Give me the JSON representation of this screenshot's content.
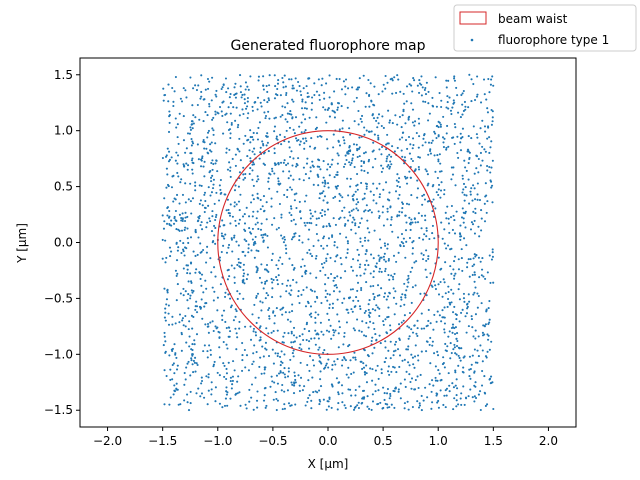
{
  "chart_data": {
    "type": "scatter",
    "title": "Generated fluorophore map",
    "xlabel": "X [μm]",
    "ylabel": "Y [μm]",
    "xlim": [
      -2.25,
      2.25
    ],
    "ylim": [
      -1.65,
      1.65
    ],
    "xticks": [
      "−2.0",
      "−1.5",
      "−1.0",
      "−0.5",
      "0.0",
      "0.5",
      "1.0",
      "1.5",
      "2.0"
    ],
    "yticks": [
      "−1.5",
      "−1.0",
      "−0.5",
      "0.0",
      "0.5",
      "1.0",
      "1.5"
    ],
    "grid": false,
    "legend_position": "top-right",
    "legend": [
      {
        "label": "beam waist",
        "marker": "rectangle-outline",
        "color": "#d62728"
      },
      {
        "label": "fluorophore type 1",
        "marker": "dot",
        "color": "#1f77b4"
      }
    ],
    "beam_waist": {
      "center": [
        0.0,
        0.0
      ],
      "radius": 1.0,
      "color": "#d62728"
    },
    "fluorophores": {
      "name": "fluorophore type 1",
      "color": "#1f77b4",
      "distribution": "uniform",
      "x_range": [
        -1.5,
        1.5
      ],
      "y_range": [
        -1.5,
        1.5
      ],
      "approx_count": 3000
    }
  }
}
